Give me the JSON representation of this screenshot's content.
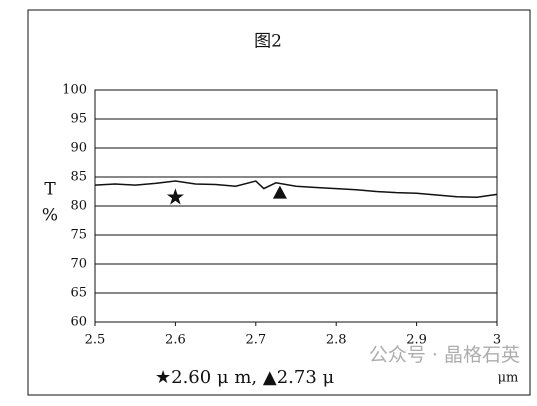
{
  "chart_data": {
    "type": "line",
    "title": "图2",
    "ylabel": [
      "T",
      "%"
    ],
    "xlabel": "μm",
    "annotation": "★2.60 μ m, ▲2.73 μ",
    "watermark": "公众号 · 晶格石英",
    "x": [
      2.5,
      2.525,
      2.55,
      2.575,
      2.6,
      2.625,
      2.65,
      2.675,
      2.7,
      2.71,
      2.725,
      2.75,
      2.775,
      2.8,
      2.825,
      2.85,
      2.875,
      2.9,
      2.925,
      2.95,
      2.975,
      3
    ],
    "series": [
      {
        "color": "#111111",
        "values": [
          83.6,
          83.8,
          83.6,
          83.9,
          84.3,
          83.8,
          83.7,
          83.4,
          84.3,
          83.0,
          84.0,
          83.4,
          83.2,
          83.0,
          82.8,
          82.5,
          82.3,
          82.2,
          81.9,
          81.6,
          81.5,
          82.0
        ]
      }
    ],
    "markers": [
      {
        "shape": "star",
        "x": 2.6,
        "y": 81.5
      },
      {
        "shape": "triangle",
        "x": 2.73,
        "y": 82.3
      }
    ],
    "xlim": [
      2.5,
      3
    ],
    "xticks": [
      2.5,
      2.6,
      2.7,
      2.8,
      2.9,
      3
    ],
    "ylim": [
      60,
      100
    ],
    "yticks": [
      60,
      65,
      70,
      75,
      80,
      85,
      90,
      95,
      100
    ],
    "grid": true
  }
}
